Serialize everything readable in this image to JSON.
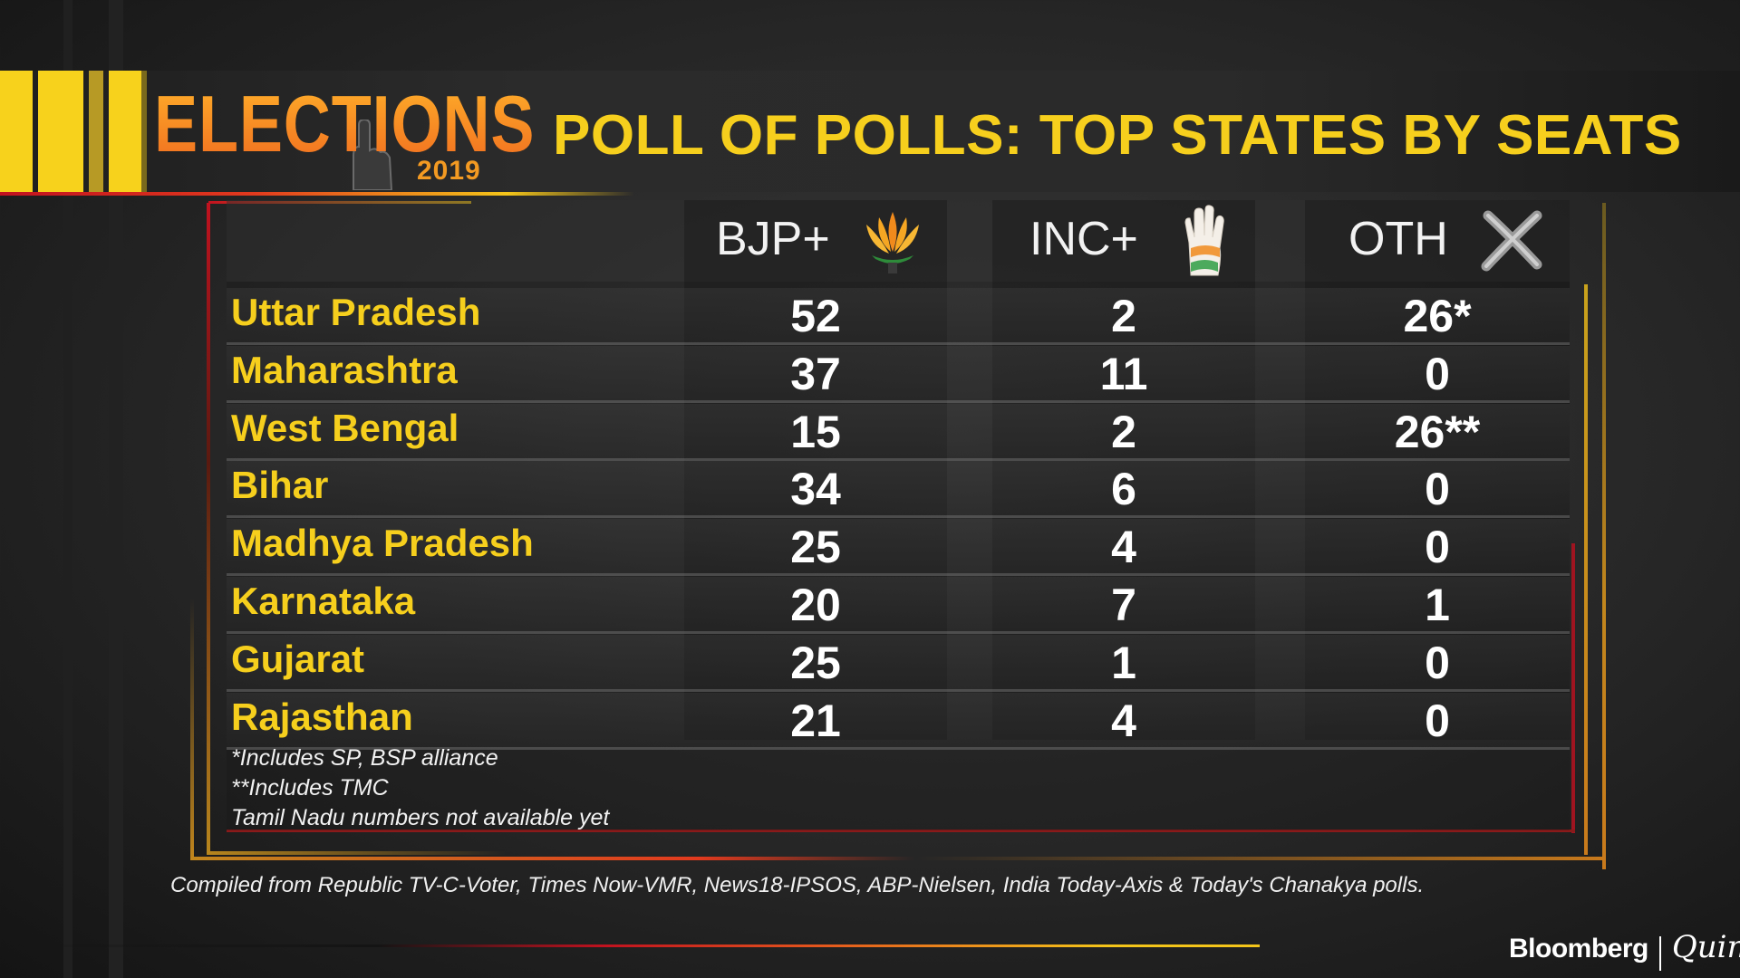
{
  "logo": {
    "word": "ELECTIONS",
    "year": "2019"
  },
  "header": {
    "title": "POLL OF POLLS: TOP STATES BY SEATS"
  },
  "table": {
    "columns": [
      {
        "label": "BJP+",
        "icon": "lotus-icon"
      },
      {
        "label": "INC+",
        "icon": "hand-icon"
      },
      {
        "label": "OTH",
        "icon": "cross-icon"
      }
    ],
    "rows": [
      {
        "state": "Uttar Pradesh",
        "bjp": "52",
        "inc": "2",
        "oth": "26*"
      },
      {
        "state": "Maharashtra",
        "bjp": "37",
        "inc": "11",
        "oth": "0"
      },
      {
        "state": "West Bengal",
        "bjp": "15",
        "inc": "2",
        "oth": "26**"
      },
      {
        "state": "Bihar",
        "bjp": "34",
        "inc": "6",
        "oth": "0"
      },
      {
        "state": "Madhya Pradesh",
        "bjp": "25",
        "inc": "4",
        "oth": "0"
      },
      {
        "state": "Karnataka",
        "bjp": "20",
        "inc": "7",
        "oth": "1"
      },
      {
        "state": "Gujarat",
        "bjp": "25",
        "inc": "1",
        "oth": "0"
      },
      {
        "state": "Rajasthan",
        "bjp": "21",
        "inc": "4",
        "oth": "0"
      }
    ]
  },
  "footnotes": [
    "*Includes SP, BSP alliance",
    "**Includes TMC",
    "Tamil Nadu numbers not available yet"
  ],
  "source_note": "Compiled from Republic TV-C-Voter, Times Now-VMR, News18-IPSOS, ABP-Nielsen, India Today-Axis & Today's Chanakya polls.",
  "brand": {
    "name1": "Bloomberg",
    "name2": "Quint"
  },
  "colors": {
    "accent_yellow": "#f6cf1d",
    "accent_orange": "#f06a1f",
    "accent_red": "#c1121f"
  }
}
